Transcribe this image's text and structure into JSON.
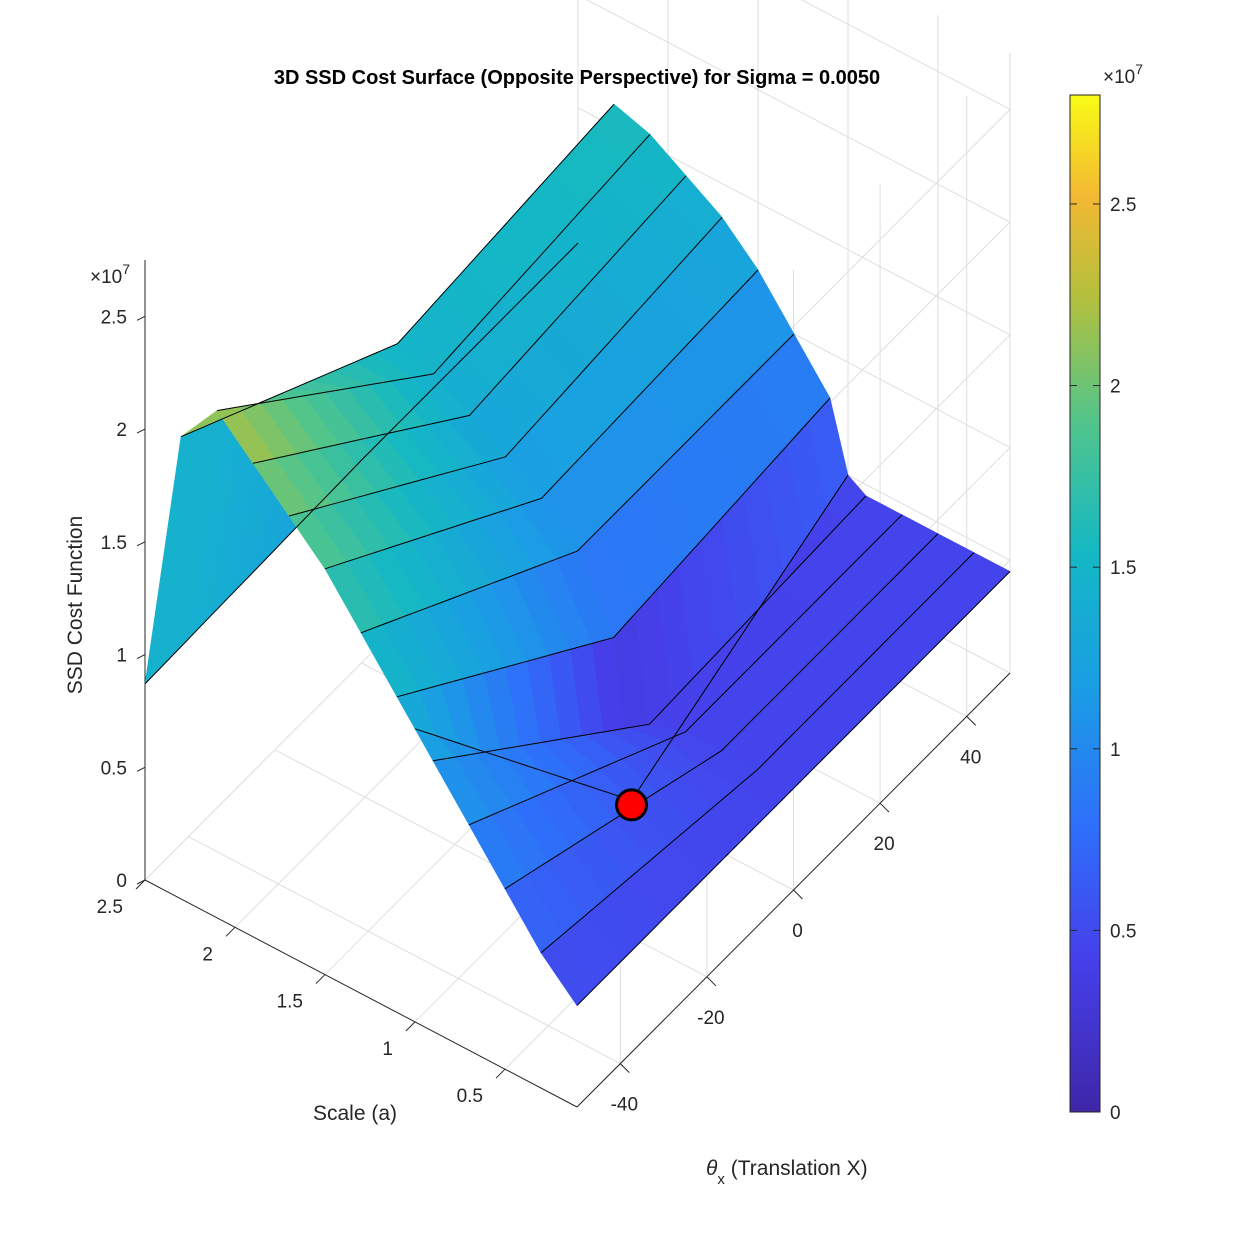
{
  "chart_data": {
    "type": "surface3d",
    "title": "3D SSD Cost Surface (Opposite Perspective) for Sigma = 0.0050",
    "xlabel_symbol": "θ",
    "xlabel_sub": "x",
    "xlabel_text": " (Translation X)",
    "ylabel": "Scale (a)",
    "zlabel": "SSD Cost Function",
    "z_exponent_base": "×10",
    "z_exponent_power": "7",
    "x_ticks": [
      "-40",
      "-20",
      "0",
      "20",
      "40"
    ],
    "y_ticks": [
      "0.5",
      "1",
      "1.5",
      "2",
      "2.5"
    ],
    "z_ticks": [
      "0",
      "0.5",
      "1",
      "1.5",
      "2",
      "2.5"
    ],
    "colorbar_ticks": [
      "0",
      "0.5",
      "1",
      "1.5",
      "2",
      "2.5"
    ],
    "colorbar_exponent_base": "×10",
    "colorbar_exponent_power": "7",
    "xlim": [
      -50,
      50
    ],
    "ylim": [
      0.1,
      2.5
    ],
    "zlim": [
      0,
      27500000.0
    ],
    "clim": [
      0,
      28000000.0
    ],
    "colormap": "parula",
    "grid": true,
    "minimum_marker": {
      "x": 0,
      "y": 1.0,
      "z": 0.0,
      "color": "#ff0000"
    },
    "profile_along_scale": {
      "scale": [
        2.5,
        2.3,
        2.1,
        1.9,
        1.7,
        1.5,
        1.3,
        1.1,
        1.0,
        0.9,
        0.7,
        0.5,
        0.3,
        0.1
      ],
      "cost_at_theta_minus50": [
        8700000.0,
        20500000.0,
        22500000.0,
        21000000.0,
        19500000.0,
        18000000.0,
        16000000.0,
        14000000.0,
        13000000.0,
        12000000.0,
        10000000.0,
        8000000.0,
        6000000.0,
        4500000.0
      ],
      "cost_at_theta_0": [
        9000000.0,
        15000000.0,
        14500000.0,
        13500000.0,
        12500000.0,
        11500000.0,
        10000000.0,
        7000000.0,
        200000.0,
        4000000.0,
        4500000.0,
        4500000.0,
        4500000.0,
        4500000.0
      ],
      "cost_at_theta_plus50": [
        9000000.0,
        16000000.0,
        15500000.0,
        14500000.0,
        13500000.0,
        12000000.0,
        10000000.0,
        8000000.0,
        5000000.0,
        4500000.0,
        4500000.0,
        4500000.0,
        4500000.0,
        4500000.0
      ]
    }
  }
}
